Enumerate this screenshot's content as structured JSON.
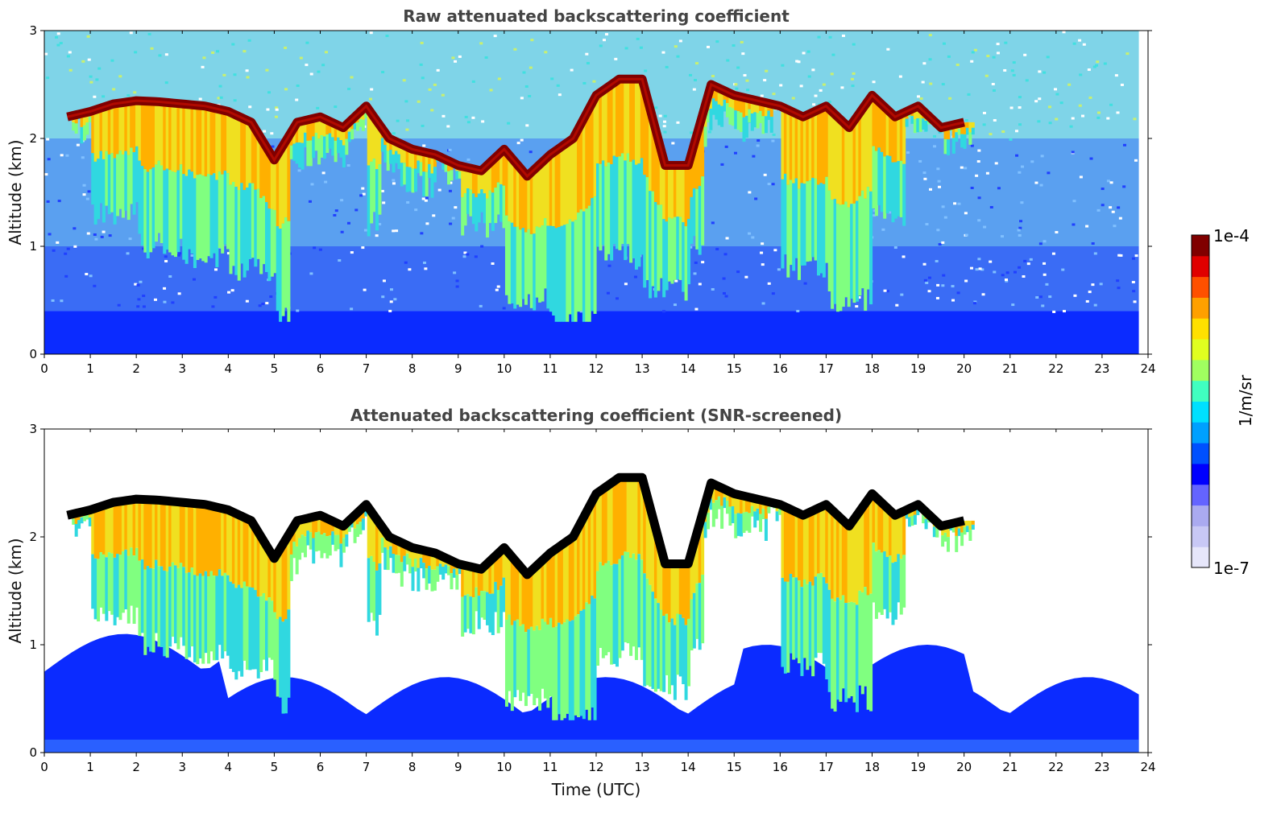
{
  "chart_data": [
    {
      "type": "heatmap",
      "title": "Raw attenuated backscattering coefficient",
      "xlabel": "",
      "ylabel": "Altitude (km)",
      "xlim": [
        0,
        24
      ],
      "ylim": [
        0,
        3
      ],
      "x_ticks": [
        "0",
        "1",
        "2",
        "3",
        "4",
        "5",
        "6",
        "7",
        "8",
        "9",
        "10",
        "11",
        "12",
        "13",
        "14",
        "15",
        "16",
        "17",
        "18",
        "19",
        "20",
        "21",
        "22",
        "23",
        "24"
      ],
      "y_ticks": [
        "0",
        "1",
        "2",
        "3"
      ],
      "data_end_time": 23.8,
      "cloud_top_km": [
        {
          "t": 0.5,
          "z": 2.2
        },
        {
          "t": 1.0,
          "z": 2.25
        },
        {
          "t": 1.5,
          "z": 2.32
        },
        {
          "t": 2.0,
          "z": 2.35
        },
        {
          "t": 2.5,
          "z": 2.34
        },
        {
          "t": 3.0,
          "z": 2.32
        },
        {
          "t": 3.5,
          "z": 2.3
        },
        {
          "t": 4.0,
          "z": 2.25
        },
        {
          "t": 4.5,
          "z": 2.15
        },
        {
          "t": 5.0,
          "z": 1.8
        },
        {
          "t": 5.5,
          "z": 2.15
        },
        {
          "t": 6.0,
          "z": 2.2
        },
        {
          "t": 6.5,
          "z": 2.1
        },
        {
          "t": 7.0,
          "z": 2.3
        },
        {
          "t": 7.5,
          "z": 2.0
        },
        {
          "t": 8.0,
          "z": 1.9
        },
        {
          "t": 8.5,
          "z": 1.85
        },
        {
          "t": 9.0,
          "z": 1.75
        },
        {
          "t": 9.5,
          "z": 1.7
        },
        {
          "t": 10.0,
          "z": 1.9
        },
        {
          "t": 10.5,
          "z": 1.65
        },
        {
          "t": 11.0,
          "z": 1.85
        },
        {
          "t": 11.5,
          "z": 2.0
        },
        {
          "t": 12.0,
          "z": 2.4
        },
        {
          "t": 12.5,
          "z": 2.55
        },
        {
          "t": 13.0,
          "z": 2.55
        },
        {
          "t": 13.5,
          "z": 1.75
        },
        {
          "t": 14.0,
          "z": 1.75
        },
        {
          "t": 14.5,
          "z": 2.5
        },
        {
          "t": 15.0,
          "z": 2.4
        },
        {
          "t": 15.5,
          "z": 2.35
        },
        {
          "t": 16.0,
          "z": 2.3
        },
        {
          "t": 16.5,
          "z": 2.2
        },
        {
          "t": 17.0,
          "z": 2.3
        },
        {
          "t": 17.5,
          "z": 2.1
        },
        {
          "t": 18.0,
          "z": 2.4
        },
        {
          "t": 18.5,
          "z": 2.2
        },
        {
          "t": 19.0,
          "z": 2.3
        },
        {
          "t": 19.5,
          "z": 2.1
        },
        {
          "t": 20.0,
          "z": 2.15
        }
      ]
    },
    {
      "type": "heatmap",
      "title": "Attenuated backscattering coefficient (SNR-screened)",
      "xlabel": "Time (UTC)",
      "ylabel": "Altitude (km)",
      "xlim": [
        0,
        24
      ],
      "ylim": [
        0,
        3
      ],
      "x_ticks": [
        "0",
        "1",
        "2",
        "3",
        "4",
        "5",
        "6",
        "7",
        "8",
        "9",
        "10",
        "11",
        "12",
        "13",
        "14",
        "15",
        "16",
        "17",
        "18",
        "19",
        "20",
        "21",
        "22",
        "23",
        "24"
      ],
      "y_ticks": [
        "0",
        "1",
        "2",
        "3"
      ],
      "data_end_time": 23.8
    }
  ],
  "colorbar": {
    "label": "1/m/sr",
    "max_label": "1e-4",
    "min_label": "1e-7",
    "colors": [
      "#e6e6fa",
      "#c8c8f5",
      "#aaaaf0",
      "#6464ff",
      "#0000ff",
      "#0050ff",
      "#00a0ff",
      "#00e0ff",
      "#40ffc0",
      "#a0ff60",
      "#e0ff20",
      "#ffe000",
      "#ffa000",
      "#ff5000",
      "#e00000",
      "#800000"
    ]
  },
  "colors": {
    "cloud_core": "#800000",
    "screened_core": "#000000",
    "background": "#ffffff"
  }
}
